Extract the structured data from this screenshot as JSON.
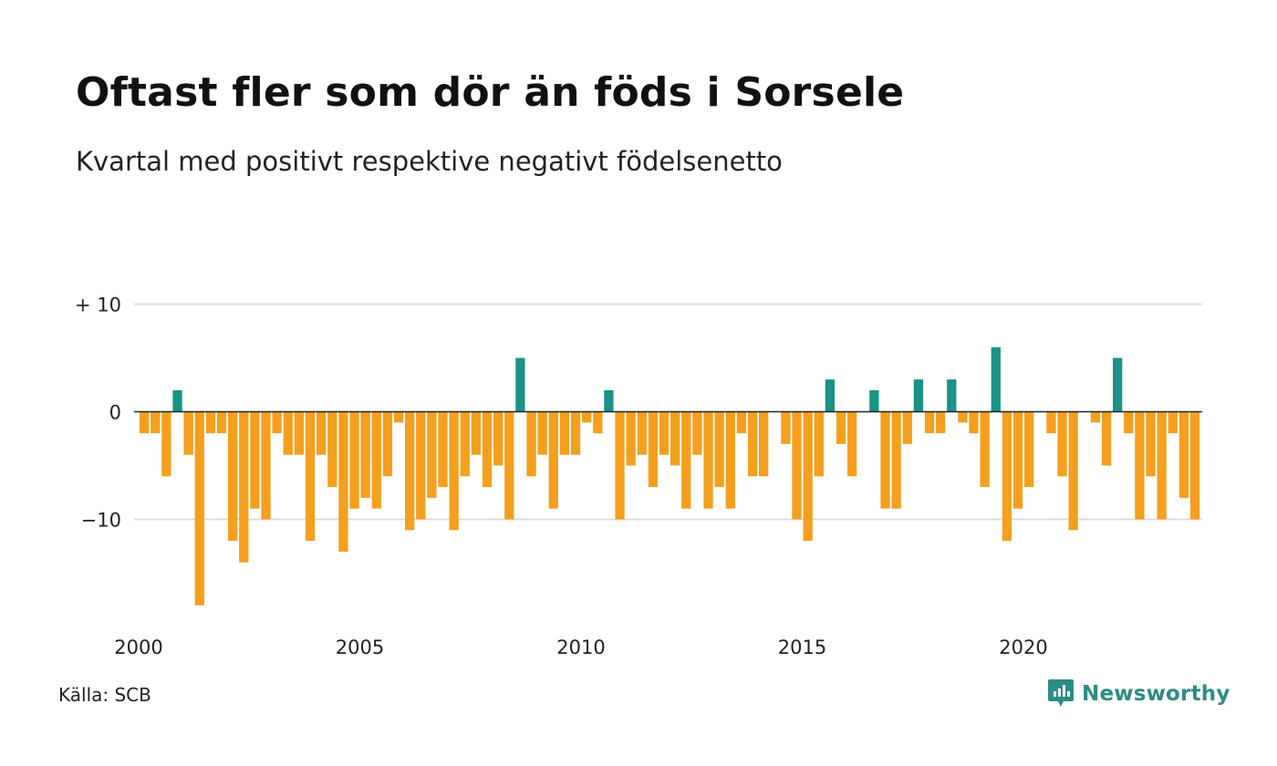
{
  "chart_data": {
    "type": "bar",
    "title": "Oftast fler som dör än föds i Sorsele",
    "subtitle": "Kvartal med positivt respektive negativt födelsenetto",
    "x_start": "2000 Q1",
    "x_ticks": [
      "2000",
      "2005",
      "2010",
      "2015",
      "2020"
    ],
    "y_ticks": [
      {
        "value": 10,
        "label": "+ 10"
      },
      {
        "value": 0,
        "label": "0"
      },
      {
        "value": -10,
        "label": "−10"
      }
    ],
    "ylim": [
      -20,
      10
    ],
    "grid": true,
    "values": [
      -2,
      -2,
      -6,
      2,
      -4,
      -18,
      -2,
      -2,
      -12,
      -14,
      -9,
      -10,
      -2,
      -4,
      -4,
      -12,
      -4,
      -7,
      -13,
      -9,
      -8,
      -9,
      -6,
      -1,
      -11,
      -10,
      -8,
      -7,
      -11,
      -6,
      -4,
      -7,
      -5,
      -10,
      5,
      -6,
      -4,
      -9,
      -4,
      -4,
      -1,
      -2,
      2,
      -10,
      -5,
      -4,
      -7,
      -4,
      -5,
      -9,
      -4,
      -9,
      -7,
      -9,
      -2,
      -6,
      -6,
      0,
      -3,
      -10,
      -12,
      -6,
      3,
      -3,
      -6,
      0,
      2,
      -9,
      -9,
      -3,
      3,
      -2,
      -2,
      3,
      -1,
      -2,
      -7,
      6,
      -12,
      -9,
      -7,
      0,
      -2,
      -6,
      -11,
      0,
      -1,
      -5,
      5,
      -2,
      -10,
      -6,
      -10,
      -2,
      -8,
      -10
    ],
    "colors": {
      "positive": "#1a9388",
      "negative": "#f59f1e",
      "grid": "#dddddd",
      "axis": "#222222"
    }
  },
  "footer": {
    "source": "Källa: SCB",
    "brand": "Newsworthy",
    "brand_icon": "newsworthy-logo-icon",
    "brand_color": "#2c8c86"
  }
}
